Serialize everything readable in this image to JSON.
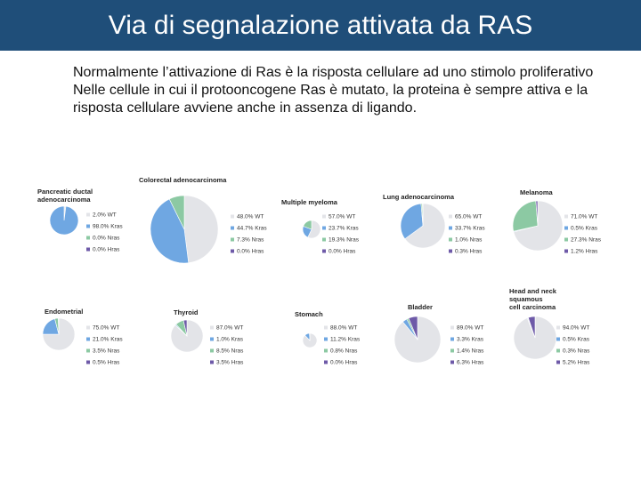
{
  "header": {
    "title": "Via di segnalazione attivata da RAS"
  },
  "intro": {
    "line1": "Normalmente l’attivazione di Ras è la risposta cellulare ad uno stimolo proliferativo",
    "line2": "Nelle cellule in cui il protooncogene Ras è mutato, la proteina è sempre attiva e la risposta cellulare avviene anche in assenza di ligando."
  },
  "colors": {
    "WT": "#e3e4e8",
    "Kras": "#6fa7e2",
    "Nras": "#8cc9a3",
    "Hras": "#6e5aa8"
  },
  "chart_data": [
    {
      "type": "pie",
      "title": [
        "Pancreatic ductal",
        "adenocarcinoma"
      ],
      "slices": [
        {
          "label": "2.0% WT",
          "value": 2.0,
          "key": "WT"
        },
        {
          "label": "98.0% Kras",
          "value": 98.0,
          "key": "Kras"
        },
        {
          "label": "0.0% Nras",
          "value": 0.0,
          "key": "Nras"
        },
        {
          "label": "0.0% Hras",
          "value": 0.0,
          "key": "Hras"
        }
      ]
    },
    {
      "type": "pie",
      "title": [
        "Colorectal adenocarcinoma"
      ],
      "slices": [
        {
          "label": "48.0% WT",
          "value": 48.0,
          "key": "WT"
        },
        {
          "label": "44.7% Kras",
          "value": 44.7,
          "key": "Kras"
        },
        {
          "label": "7.3% Nras",
          "value": 7.3,
          "key": "Nras"
        },
        {
          "label": "0.0% Hras",
          "value": 0.0,
          "key": "Hras"
        }
      ]
    },
    {
      "type": "pie",
      "title": [
        "Multiple myeloma"
      ],
      "slices": [
        {
          "label": "57.0% WT",
          "value": 57.0,
          "key": "WT"
        },
        {
          "label": "23.7% Kras",
          "value": 23.7,
          "key": "Kras"
        },
        {
          "label": "19.3% Nras",
          "value": 19.3,
          "key": "Nras"
        },
        {
          "label": "0.0% Hras",
          "value": 0.0,
          "key": "Hras"
        }
      ]
    },
    {
      "type": "pie",
      "title": [
        "Lung adenocarcinoma"
      ],
      "slices": [
        {
          "label": "65.0% WT",
          "value": 65.0,
          "key": "WT"
        },
        {
          "label": "33.7% Kras",
          "value": 33.7,
          "key": "Kras"
        },
        {
          "label": "1.0% Nras",
          "value": 1.0,
          "key": "Nras"
        },
        {
          "label": "0.3% Hras",
          "value": 0.3,
          "key": "Hras"
        }
      ]
    },
    {
      "type": "pie",
      "title": [
        "Melanoma"
      ],
      "slices": [
        {
          "label": "71.0% WT",
          "value": 71.0,
          "key": "WT"
        },
        {
          "label": "0.5% Kras",
          "value": 0.5,
          "key": "Kras"
        },
        {
          "label": "27.3% Nras",
          "value": 27.3,
          "key": "Nras"
        },
        {
          "label": "1.2% Hras",
          "value": 1.2,
          "key": "Hras"
        }
      ]
    },
    {
      "type": "pie",
      "title": [
        "Endometrial"
      ],
      "slices": [
        {
          "label": "75.0% WT",
          "value": 75.0,
          "key": "WT"
        },
        {
          "label": "21.0% Kras",
          "value": 21.0,
          "key": "Kras"
        },
        {
          "label": "3.5% Nras",
          "value": 3.5,
          "key": "Nras"
        },
        {
          "label": "0.5% Hras",
          "value": 0.5,
          "key": "Hras"
        }
      ]
    },
    {
      "type": "pie",
      "title": [
        "Thyroid"
      ],
      "slices": [
        {
          "label": "87.0% WT",
          "value": 87.0,
          "key": "WT"
        },
        {
          "label": "1.0% Kras",
          "value": 1.0,
          "key": "Kras"
        },
        {
          "label": "8.5% Nras",
          "value": 8.5,
          "key": "Nras"
        },
        {
          "label": "3.5% Hras",
          "value": 3.5,
          "key": "Hras"
        }
      ]
    },
    {
      "type": "pie",
      "title": [
        "Stomach"
      ],
      "slices": [
        {
          "label": "88.0% WT",
          "value": 88.0,
          "key": "WT"
        },
        {
          "label": "11.2% Kras",
          "value": 11.2,
          "key": "Kras"
        },
        {
          "label": "0.8% Nras",
          "value": 0.8,
          "key": "Nras"
        },
        {
          "label": "0.0% Hras",
          "value": 0.0,
          "key": "Hras"
        }
      ]
    },
    {
      "type": "pie",
      "title": [
        "Bladder"
      ],
      "slices": [
        {
          "label": "89.0% WT",
          "value": 89.0,
          "key": "WT"
        },
        {
          "label": "3.3% Kras",
          "value": 3.3,
          "key": "Kras"
        },
        {
          "label": "1.4% Nras",
          "value": 1.4,
          "key": "Nras"
        },
        {
          "label": "6.3% Hras",
          "value": 6.3,
          "key": "Hras"
        }
      ]
    },
    {
      "type": "pie",
      "title": [
        "Head and neck",
        "squamous",
        "cell carcinoma"
      ],
      "slices": [
        {
          "label": "94.0% WT",
          "value": 94.0,
          "key": "WT"
        },
        {
          "label": "0.5% Kras",
          "value": 0.5,
          "key": "Kras"
        },
        {
          "label": "0.3% Nras",
          "value": 0.3,
          "key": "Nras"
        },
        {
          "label": "5.2% Hras",
          "value": 5.2,
          "key": "Hras"
        }
      ]
    }
  ]
}
